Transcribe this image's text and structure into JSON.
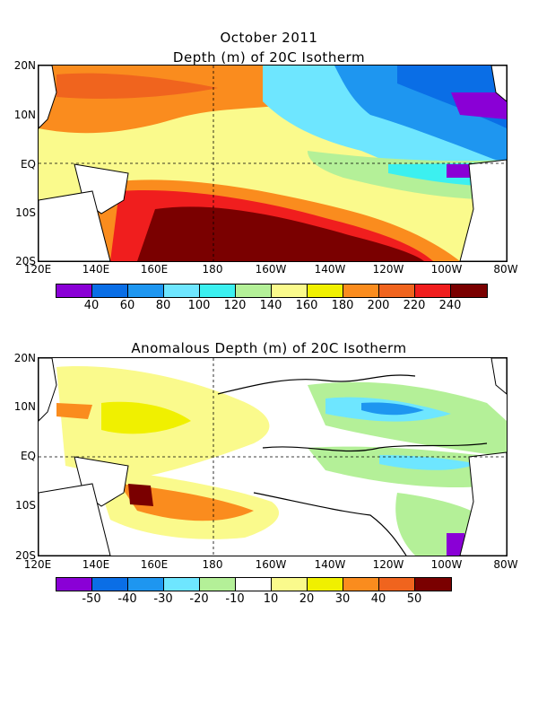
{
  "top": {
    "title_line1": "October 2011",
    "title_line2": "Depth (m) of 20C Isotherm",
    "colorbar_colors": [
      "#8a00d6",
      "#0a6ee6",
      "#1e96f0",
      "#6ee6ff",
      "#3cf0f0",
      "#b4f098",
      "#fafa8c",
      "#f0f000",
      "#fa8c1e",
      "#f0641e",
      "#f01e1e",
      "#7a0000"
    ],
    "colorbar_labels": [
      "40",
      "60",
      "80",
      "100",
      "120",
      "140",
      "160",
      "180",
      "200",
      "220",
      "240"
    ]
  },
  "bottom": {
    "title": "Anomalous Depth (m) of 20C Isotherm",
    "colorbar_colors": [
      "#8a00d6",
      "#0a6ee6",
      "#1e96f0",
      "#6ee6ff",
      "#b4f098",
      "#ffffff",
      "#fafa8c",
      "#f0f000",
      "#fa8c1e",
      "#f0641e",
      "#7a0000"
    ],
    "colorbar_labels": [
      "-50",
      "-40",
      "-30",
      "-20",
      "-10",
      "10",
      "20",
      "30",
      "40",
      "50"
    ]
  },
  "axes": {
    "y_labels": [
      "20N",
      "10N",
      "EQ",
      "10S",
      "20S"
    ],
    "x_labels": [
      "120E",
      "140E",
      "160E",
      "180",
      "160W",
      "140W",
      "120W",
      "100W",
      "80W"
    ]
  },
  "map_data": {
    "lat_range": [
      "20S",
      "20N"
    ],
    "lon_range": [
      "120E",
      "80W"
    ],
    "region": "Tropical Pacific",
    "grid": "dashed at 180 and EQ"
  }
}
